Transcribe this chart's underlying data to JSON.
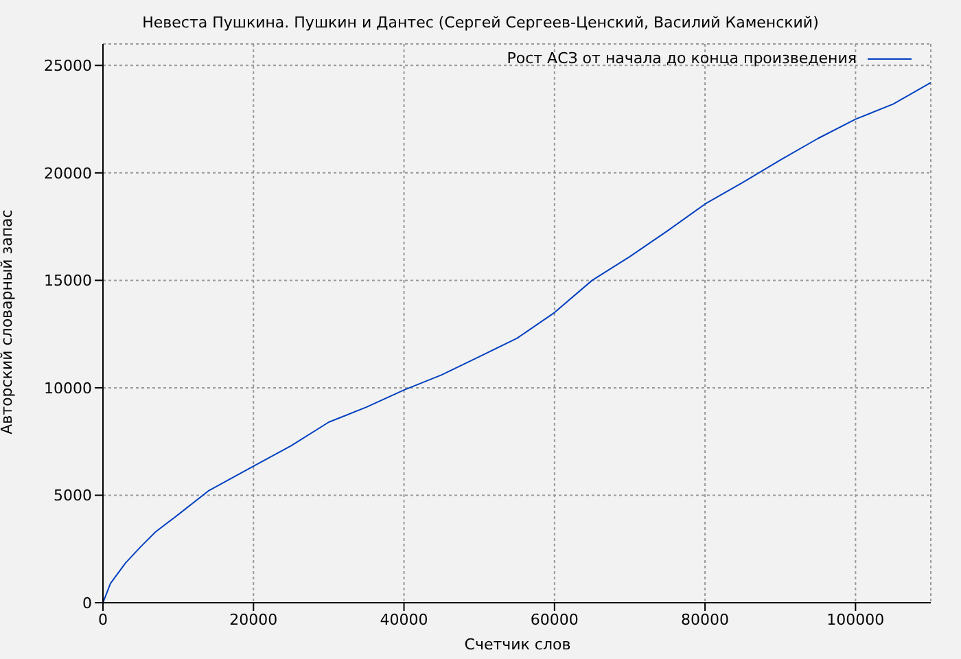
{
  "chart_data": {
    "type": "line",
    "title": "Невеста Пушкина. Пушкин и Дантес (Сергей Сергеев-Ценский, Василий Каменский)",
    "xlabel": "Счетчик слов",
    "ylabel": "Авторский словарный запас",
    "x": [
      0,
      1000,
      3000,
      5000,
      7000,
      10000,
      14000,
      20000,
      25000,
      30000,
      35000,
      40000,
      45000,
      50000,
      55000,
      60000,
      65000,
      70000,
      75000,
      80000,
      85000,
      90000,
      95000,
      100000,
      105000,
      110000
    ],
    "series": [
      {
        "name": "Рост АСЗ от начала до конца произведения",
        "color": "#0040c0",
        "values": [
          0,
          900,
          1850,
          2600,
          3300,
          4100,
          5200,
          6350,
          7300,
          8400,
          9100,
          9900,
          10600,
          11450,
          12300,
          13500,
          15000,
          16100,
          17300,
          18550,
          19550,
          20600,
          21600,
          22500,
          23200,
          24200
        ]
      }
    ],
    "xlim": [
      0,
      110000
    ],
    "xticks": [
      0,
      20000,
      40000,
      60000,
      80000,
      100000
    ],
    "ylim": [
      0,
      26000
    ],
    "yticks": [
      0,
      5000,
      10000,
      15000,
      20000,
      25000
    ],
    "grid": true,
    "legend": "top right",
    "marker": "none",
    "line_style": "solid"
  }
}
